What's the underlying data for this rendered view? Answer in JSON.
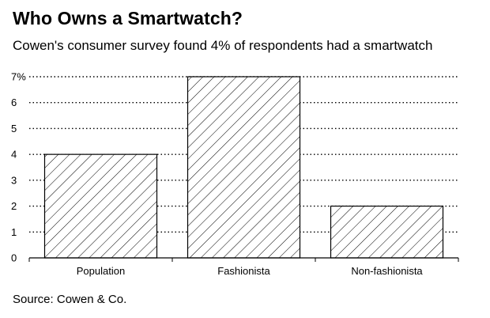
{
  "chart_data": {
    "type": "bar",
    "title": "Who Owns a Smartwatch?",
    "subtitle": "Cowen's consumer survey found 4% of respondents had a smartwatch",
    "source": "Source: Cowen & Co.",
    "categories": [
      "Population",
      "Fashionista",
      "Non-fashionista"
    ],
    "values": [
      4,
      7,
      2
    ],
    "xlabel": "",
    "ylabel": "",
    "ylim": [
      0,
      7
    ],
    "yticks": [
      0,
      1,
      2,
      3,
      4,
      5,
      6,
      7
    ],
    "ytick_labels": [
      "0",
      "1",
      "2",
      "3",
      "4",
      "5",
      "6",
      "7%"
    ],
    "grid": true,
    "bar_fill": "hatched",
    "colors": {
      "bar_stroke": "#000000",
      "hatch": "#000000",
      "grid": "#000000",
      "background": "#ffffff"
    }
  }
}
